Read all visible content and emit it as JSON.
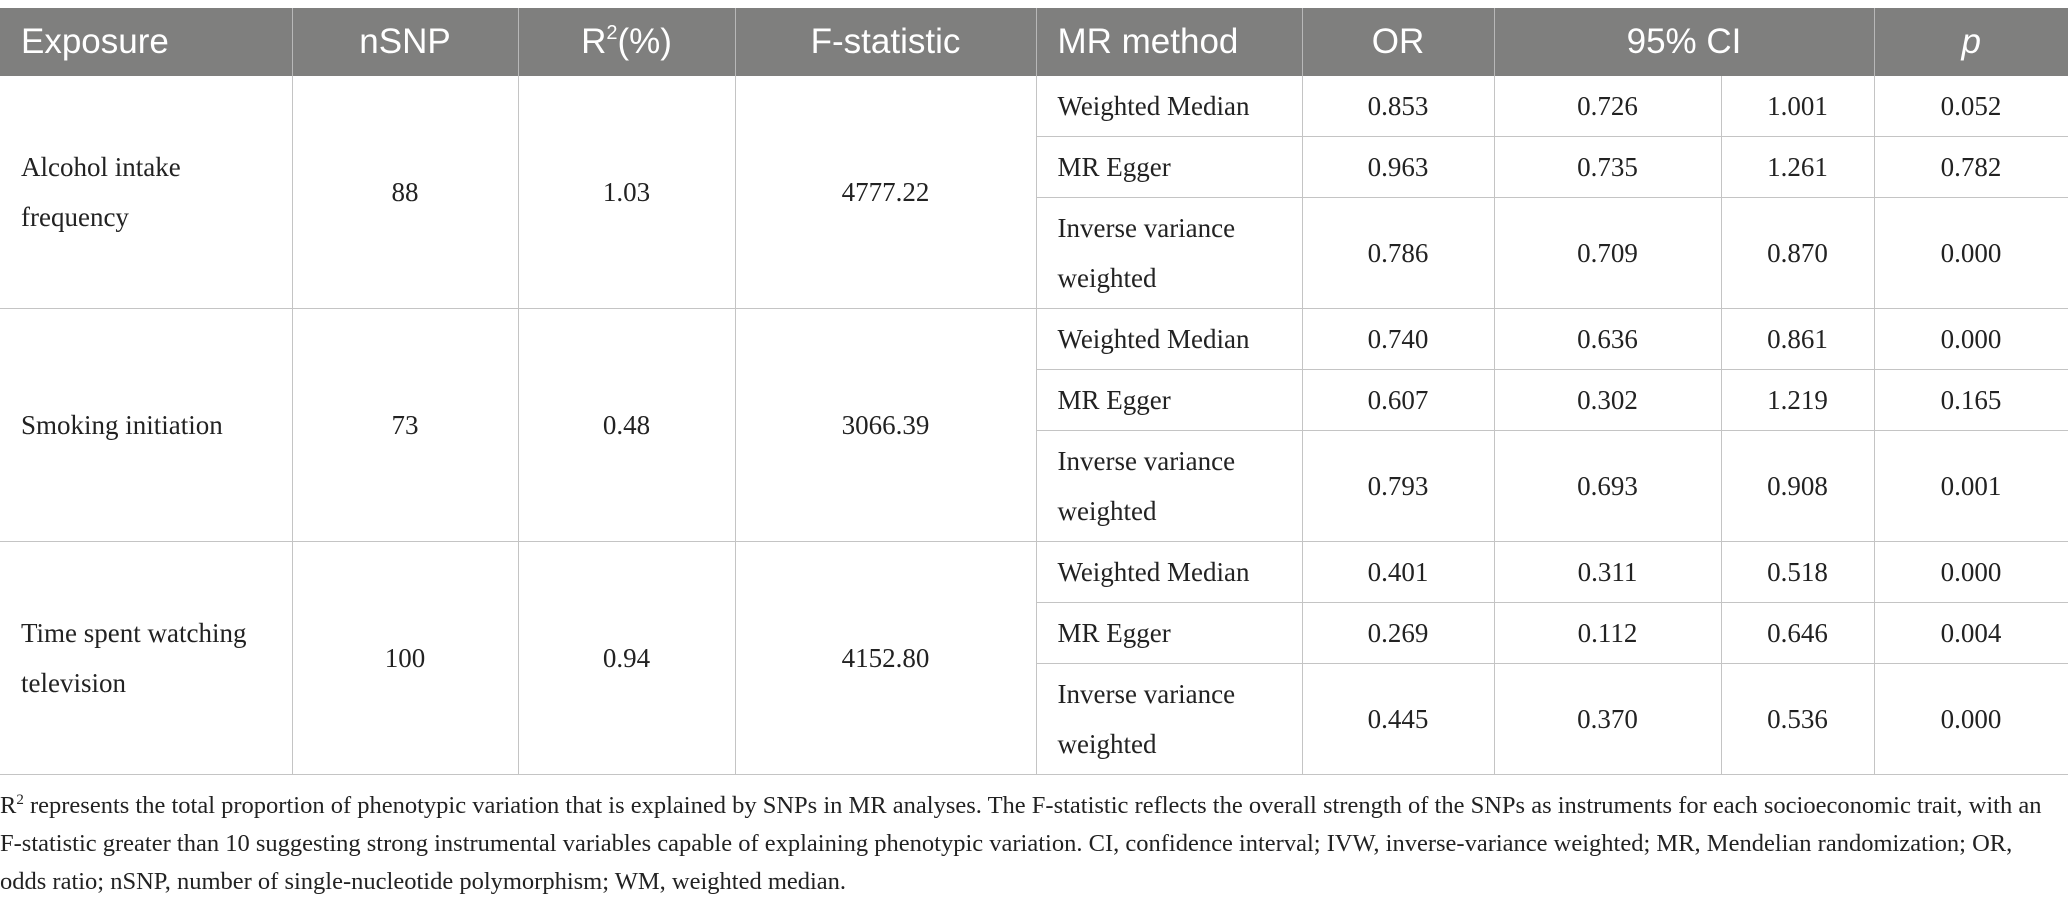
{
  "table": {
    "headers": {
      "exposure": "Exposure",
      "nsnp": "nSNP",
      "r2_base": "R",
      "r2_sup": "2",
      "r2_suffix": "(%)",
      "fstat": "F-statistic",
      "method": "MR method",
      "or": "OR",
      "ci": "95% CI",
      "p": "p"
    },
    "groups": [
      {
        "exposure": "Alcohol intake frequency",
        "nsnp": "88",
        "r2": "1.03",
        "fstat": "4777.22",
        "rows": [
          {
            "method": "Weighted Median",
            "or": "0.853",
            "ci_low": "0.726",
            "ci_high": "1.001",
            "p": "0.052"
          },
          {
            "method": "MR Egger",
            "or": "0.963",
            "ci_low": "0.735",
            "ci_high": "1.261",
            "p": "0.782"
          },
          {
            "method": "Inverse variance weighted",
            "or": "0.786",
            "ci_low": "0.709",
            "ci_high": "0.870",
            "p": "0.000"
          }
        ]
      },
      {
        "exposure": "Smoking initiation",
        "nsnp": "73",
        "r2": "0.48",
        "fstat": "3066.39",
        "rows": [
          {
            "method": "Weighted Median",
            "or": "0.740",
            "ci_low": "0.636",
            "ci_high": "0.861",
            "p": "0.000"
          },
          {
            "method": "MR Egger",
            "or": "0.607",
            "ci_low": "0.302",
            "ci_high": "1.219",
            "p": "0.165"
          },
          {
            "method": "Inverse variance weighted",
            "or": "0.793",
            "ci_low": "0.693",
            "ci_high": "0.908",
            "p": "0.001"
          }
        ]
      },
      {
        "exposure": "Time spent watching television",
        "nsnp": "100",
        "r2": "0.94",
        "fstat": "4152.80",
        "rows": [
          {
            "method": "Weighted Median",
            "or": "0.401",
            "ci_low": "0.311",
            "ci_high": "0.518",
            "p": "0.000"
          },
          {
            "method": "MR Egger",
            "or": "0.269",
            "ci_low": "0.112",
            "ci_high": "0.646",
            "p": "0.004"
          },
          {
            "method": "Inverse variance weighted",
            "or": "0.445",
            "ci_low": "0.370",
            "ci_high": "0.536",
            "p": "0.000"
          }
        ]
      }
    ]
  },
  "footnote": {
    "r_base": "R",
    "r_sup": "2",
    "text": " represents the total proportion of phenotypic variation that is explained by SNPs in MR analyses. The F-statistic reflects the overall strength of the SNPs as instruments for each socioeconomic trait, with an F-statistic greater than 10 suggesting strong instrumental variables capable of explaining phenotypic variation. CI, confidence interval; IVW, inverse-variance weighted; MR, Mendelian randomization; OR, odds ratio; nSNP, number of single-nucleotide polymorphism; WM, weighted median."
  },
  "colors": {
    "header_bg": "#7f7f7e",
    "header_text": "#ffffff",
    "grid_line": "#c4c4c4",
    "body_text": "#222222"
  }
}
